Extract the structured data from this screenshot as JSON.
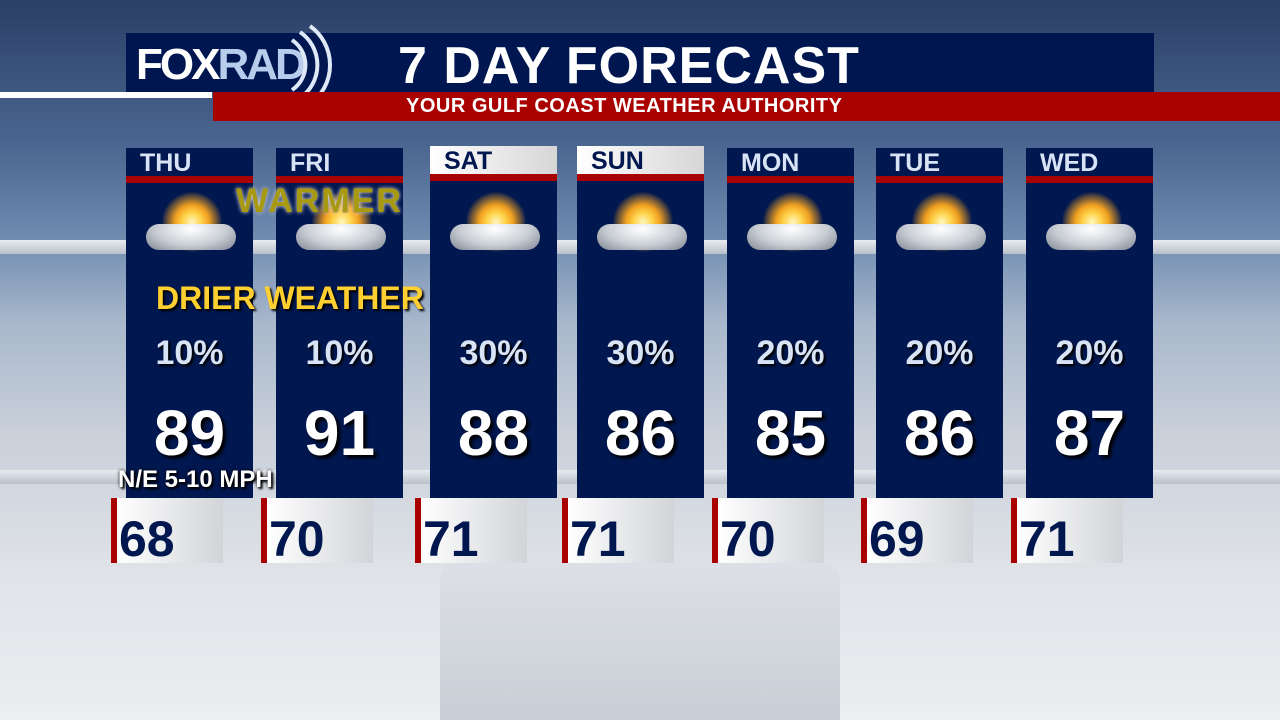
{
  "header": {
    "logo": "FOXRAD",
    "logo_parts": [
      "FOX",
      "RAD"
    ],
    "title": "7 DAY FORECAST",
    "subtitle": "YOUR GULF COAST WEATHER AUTHORITY"
  },
  "days": [
    {
      "day": "THU",
      "icon": "partly-sunny-icon",
      "precip": "10%",
      "high": "89",
      "low": "68"
    },
    {
      "day": "FRI",
      "icon": "partly-sunny-icon",
      "precip": "10%",
      "high": "91",
      "low": "70"
    },
    {
      "day": "SAT",
      "icon": "sun-cloud-showers-icon",
      "precip": "30%",
      "high": "88",
      "low": "71"
    },
    {
      "day": "SUN",
      "icon": "sun-cloud-showers-icon",
      "precip": "30%",
      "high": "86",
      "low": "71"
    },
    {
      "day": "MON",
      "icon": "sun-cloud-storm-icon",
      "precip": "20%",
      "high": "85",
      "low": "70"
    },
    {
      "day": "TUE",
      "icon": "sun-cloud-storm-icon",
      "precip": "20%",
      "high": "86",
      "low": "69"
    },
    {
      "day": "WED",
      "icon": "sun-cloud-storm-icon",
      "precip": "20%",
      "high": "87",
      "low": "71"
    }
  ],
  "annotations": {
    "warmer": "WARMER",
    "drier": "DRIER WEATHER",
    "wind": "N/E 5-10 MPH"
  },
  "colors": {
    "navy": "#00174f",
    "red": "#a90000",
    "accent_gold": "#ffd030"
  }
}
